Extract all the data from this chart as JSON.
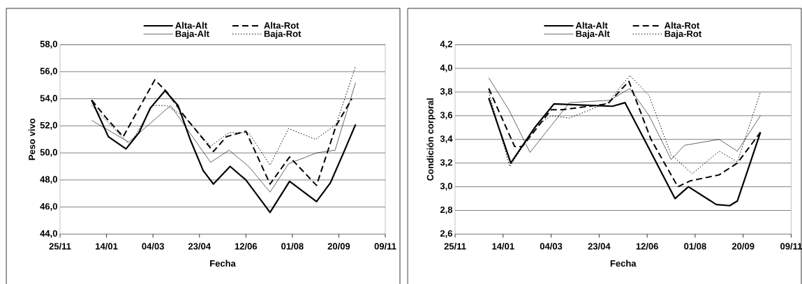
{
  "chart_data": [
    {
      "type": "line",
      "xlabel": "Fecha",
      "ylabel": "Peso vivo",
      "xlim": [
        "2003-11-25",
        "2004-11-09"
      ],
      "ylim": [
        44,
        58
      ],
      "xticks": [
        {
          "value": "2003-11-25",
          "label": "25/11"
        },
        {
          "value": "2004-01-14",
          "label": "14/01"
        },
        {
          "value": "2004-03-04",
          "label": "04/03"
        },
        {
          "value": "2004-04-23",
          "label": "23/04"
        },
        {
          "value": "2004-06-12",
          "label": "12/06"
        },
        {
          "value": "2004-08-01",
          "label": "01/08"
        },
        {
          "value": "2004-09-20",
          "label": "20/09"
        },
        {
          "value": "2004-11-09",
          "label": "09/11"
        }
      ],
      "yticks": [
        {
          "value": 44,
          "label": "44,0"
        },
        {
          "value": 46,
          "label": "46,0"
        },
        {
          "value": 48,
          "label": "48,0"
        },
        {
          "value": 50,
          "label": "50,0"
        },
        {
          "value": 52,
          "label": "52,0"
        },
        {
          "value": 54,
          "label": "54,0"
        },
        {
          "value": 56,
          "label": "56,0"
        },
        {
          "value": 58,
          "label": "58,0"
        }
      ],
      "grid": "y",
      "legend": "top",
      "marker": "none",
      "series": [
        {
          "name": "Alta-Alt",
          "color": "#000000",
          "line_style": "solid",
          "x": [
            "2003-12-29",
            "2004-01-16",
            "2004-02-04",
            "2004-02-18",
            "2004-03-01",
            "2004-03-17",
            "2004-03-31",
            "2004-04-13",
            "2004-04-27",
            "2004-05-08",
            "2004-05-26",
            "2004-06-12",
            "2004-07-08",
            "2004-07-29",
            "2004-08-27",
            "2004-09-11",
            "2004-09-25",
            "2004-10-08"
          ],
          "values": [
            53.9,
            51.2,
            50.3,
            51.5,
            53.3,
            54.6,
            53.5,
            51.0,
            48.7,
            47.7,
            49.0,
            48.0,
            45.6,
            47.9,
            46.4,
            47.8,
            50.0,
            52.1
          ]
        },
        {
          "name": "Alta-Rot",
          "color": "#000000",
          "line_style": "dashed",
          "x": [
            "2003-12-29",
            "2004-01-16",
            "2004-02-01",
            "2004-03-06",
            "2004-03-19",
            "2004-04-06",
            "2004-05-08",
            "2004-05-22",
            "2004-06-12",
            "2004-07-08",
            "2004-07-29",
            "2004-08-27",
            "2004-09-17",
            "2004-10-04"
          ],
          "values": [
            53.9,
            52.4,
            51.2,
            55.4,
            54.5,
            52.8,
            50.1,
            51.2,
            51.6,
            47.7,
            49.7,
            47.6,
            52.0,
            54.0
          ]
        },
        {
          "name": "Baja-Alt",
          "color": "#000000",
          "line_style": "solid",
          "x": [
            "2003-12-29",
            "2004-02-07",
            "2004-03-23",
            "2004-05-05",
            "2004-05-25",
            "2004-06-15",
            "2004-07-08",
            "2004-07-28",
            "2004-08-27",
            "2004-09-16",
            "2004-10-08"
          ],
          "values": [
            52.4,
            50.8,
            53.5,
            49.3,
            50.2,
            49.0,
            47.1,
            49.2,
            50.0,
            50.2,
            55.2
          ]
        },
        {
          "name": "Baja-Rot",
          "color": "#000000",
          "line_style": "dotted",
          "x": [
            "2003-12-29",
            "2004-02-08",
            "2004-03-04",
            "2004-03-19",
            "2004-04-06",
            "2004-05-05",
            "2004-05-25",
            "2004-06-15",
            "2004-07-08",
            "2004-07-28",
            "2004-08-26",
            "2004-09-17",
            "2004-10-08"
          ],
          "values": [
            53.5,
            50.6,
            53.5,
            53.5,
            52.7,
            50.5,
            51.5,
            51.5,
            49.1,
            51.8,
            51.0,
            52.1,
            56.4
          ]
        }
      ]
    },
    {
      "type": "line",
      "xlabel": "Fecha",
      "ylabel": "Condición corporal",
      "xlim": [
        "2003-11-25",
        "2004-11-09"
      ],
      "ylim": [
        2.6,
        4.2
      ],
      "xticks": [
        {
          "value": "2003-11-25",
          "label": "25/11"
        },
        {
          "value": "2004-01-14",
          "label": "14/01"
        },
        {
          "value": "2004-03-04",
          "label": "04/03"
        },
        {
          "value": "2004-04-23",
          "label": "23/04"
        },
        {
          "value": "2004-06-12",
          "label": "12/06"
        },
        {
          "value": "2004-08-01",
          "label": "01/08"
        },
        {
          "value": "2004-09-20",
          "label": "20/09"
        },
        {
          "value": "2004-11-09",
          "label": "09/11"
        }
      ],
      "yticks": [
        {
          "value": 2.6,
          "label": "2,6"
        },
        {
          "value": 2.8,
          "label": "2,8"
        },
        {
          "value": 3.0,
          "label": "3,0"
        },
        {
          "value": 3.2,
          "label": "3,2"
        },
        {
          "value": 3.4,
          "label": "3,4"
        },
        {
          "value": 3.6,
          "label": "3,6"
        },
        {
          "value": 3.8,
          "label": "3,8"
        },
        {
          "value": 4.0,
          "label": "4,0"
        },
        {
          "value": 4.2,
          "label": "4,2"
        }
      ],
      "grid": "y",
      "legend": "top",
      "marker": "none",
      "series": [
        {
          "name": "Alta-Alt",
          "color": "#000000",
          "line_style": "solid",
          "x": [
            "2003-12-30",
            "2004-01-22",
            "2004-02-16",
            "2004-03-07",
            "2004-04-06",
            "2004-05-07",
            "2004-05-20",
            "2004-06-09",
            "2004-07-11",
            "2004-07-25",
            "2004-08-23",
            "2004-09-06",
            "2004-09-14",
            "2004-10-08"
          ],
          "values": [
            3.75,
            3.2,
            3.5,
            3.7,
            3.69,
            3.68,
            3.71,
            3.4,
            2.9,
            3.0,
            2.85,
            2.84,
            2.88,
            3.46
          ]
        },
        {
          "name": "Alta-Rot",
          "color": "#000000",
          "line_style": "dashed",
          "x": [
            "2003-12-30",
            "2004-01-26",
            "2004-02-03",
            "2004-03-04",
            "2004-03-15",
            "2004-05-02",
            "2004-05-24",
            "2004-06-16",
            "2004-07-14",
            "2004-07-27",
            "2004-08-26",
            "2004-09-14",
            "2004-10-08"
          ],
          "values": [
            3.83,
            3.34,
            3.34,
            3.65,
            3.65,
            3.7,
            3.89,
            3.4,
            3.0,
            3.05,
            3.1,
            3.2,
            3.46
          ]
        },
        {
          "name": "Baja-Alt",
          "color": "#000000",
          "line_style": "solid",
          "x": [
            "2003-12-30",
            "2004-01-20",
            "2004-02-11",
            "2004-03-23",
            "2004-05-04",
            "2004-05-25",
            "2004-06-14",
            "2004-07-07",
            "2004-07-21",
            "2004-08-26",
            "2004-09-14",
            "2004-10-08"
          ],
          "values": [
            3.92,
            3.65,
            3.29,
            3.71,
            3.73,
            3.83,
            3.6,
            3.23,
            3.35,
            3.4,
            3.3,
            3.6
          ]
        },
        {
          "name": "Baja-Rot",
          "color": "#000000",
          "line_style": "dotted",
          "x": [
            "2003-12-30",
            "2004-01-21",
            "2004-02-16",
            "2004-03-04",
            "2004-03-23",
            "2004-05-02",
            "2004-05-25",
            "2004-06-14",
            "2004-07-07",
            "2004-07-29",
            "2004-08-26",
            "2004-09-14",
            "2004-10-08"
          ],
          "values": [
            3.8,
            3.17,
            3.5,
            3.6,
            3.58,
            3.71,
            3.94,
            3.77,
            3.27,
            3.11,
            3.3,
            3.21,
            3.8
          ]
        }
      ]
    }
  ]
}
